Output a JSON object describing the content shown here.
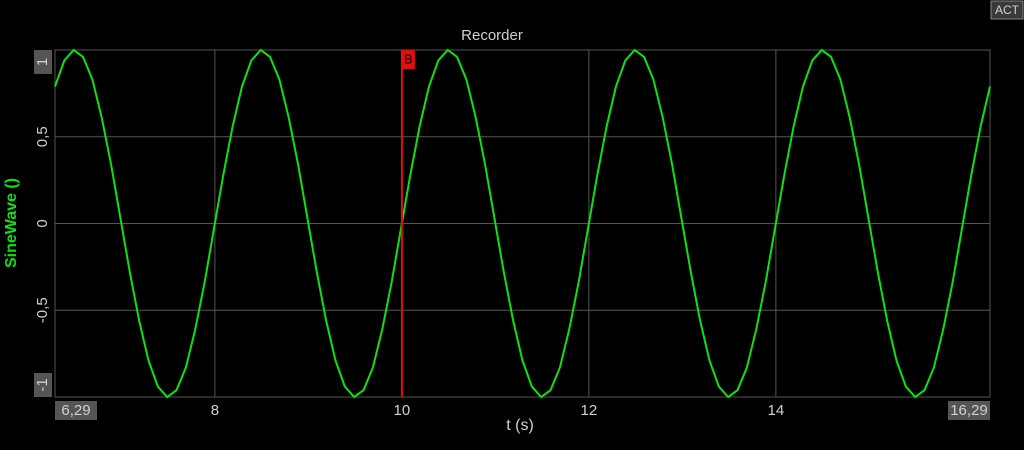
{
  "status": "ACT",
  "chart_data": {
    "type": "line",
    "title": "Recorder",
    "x_label": "t (s)",
    "y_label": "SineWave ()",
    "xlim": [
      6.29,
      16.29
    ],
    "ylim": [
      -1,
      1
    ],
    "xticks": [
      {
        "value": 6.29,
        "label": "6,29"
      },
      8,
      10,
      12,
      14,
      {
        "value": 16.29,
        "label": "16,29"
      }
    ],
    "yticks": [
      -1,
      {
        "value": -0.5,
        "label": "-0,5"
      },
      0,
      {
        "value": 0.5,
        "label": "0,5"
      },
      1
    ],
    "grid": true,
    "cursor": {
      "label": "B",
      "x": 10,
      "color": "#e01010"
    },
    "series": [
      {
        "color": "#10e010",
        "x": [
          6.29,
          6.39,
          6.49,
          6.59,
          6.69,
          6.79,
          6.89,
          6.99,
          7.09,
          7.19,
          7.29,
          7.39,
          7.49,
          7.59,
          7.69,
          7.79,
          7.89,
          7.99,
          8.09,
          8.19,
          8.29,
          8.39,
          8.49,
          8.59,
          8.69,
          8.79,
          8.89,
          8.99,
          9.09,
          9.19,
          9.29,
          9.39,
          9.49,
          9.59,
          9.69,
          9.79,
          9.89,
          9.99,
          10.09,
          10.19,
          10.29,
          10.39,
          10.49,
          10.59,
          10.69,
          10.79,
          10.89,
          10.99,
          11.09,
          11.19,
          11.29,
          11.39,
          11.49,
          11.59,
          11.69,
          11.79,
          11.89,
          11.99,
          12.09,
          12.19,
          12.29,
          12.39,
          12.49,
          12.59,
          12.69,
          12.79,
          12.89,
          12.99,
          13.09,
          13.19,
          13.29,
          13.39,
          13.49,
          13.59,
          13.69,
          13.79,
          13.89,
          13.99,
          14.09,
          14.19,
          14.29,
          14.39,
          14.49,
          14.59,
          14.69,
          14.79,
          14.89,
          14.99,
          15.09,
          15.19,
          15.29,
          15.39,
          15.49,
          15.59,
          15.69,
          15.79,
          15.89,
          15.99,
          16.09,
          16.19,
          16.29
        ],
        "values": [
          0.79,
          0.94,
          1,
          0.96,
          0.83,
          0.61,
          0.34,
          0.03,
          -0.28,
          -0.56,
          -0.79,
          -0.94,
          -1,
          -0.96,
          -0.83,
          -0.61,
          -0.34,
          -0.03,
          0.28,
          0.56,
          0.79,
          0.94,
          1,
          0.96,
          0.83,
          0.61,
          0.34,
          0.03,
          -0.28,
          -0.56,
          -0.79,
          -0.94,
          -1,
          -0.96,
          -0.83,
          -0.61,
          -0.34,
          -0.03,
          0.28,
          0.56,
          0.79,
          0.94,
          1,
          0.96,
          0.83,
          0.61,
          0.34,
          0.03,
          -0.28,
          -0.56,
          -0.79,
          -0.94,
          -1,
          -0.96,
          -0.83,
          -0.61,
          -0.34,
          -0.03,
          0.28,
          0.56,
          0.79,
          0.94,
          1,
          0.96,
          0.83,
          0.61,
          0.34,
          0.03,
          -0.28,
          -0.56,
          -0.79,
          -0.94,
          -1,
          -0.96,
          -0.83,
          -0.61,
          -0.34,
          -0.03,
          0.28,
          0.56,
          0.79,
          0.94,
          1,
          0.96,
          0.83,
          0.61,
          0.34,
          0.03,
          -0.28,
          -0.56,
          -0.79,
          -0.94,
          -1,
          -0.96,
          -0.83,
          -0.61,
          -0.34,
          -0.03,
          0.28,
          0.56,
          0.79
        ]
      }
    ]
  }
}
